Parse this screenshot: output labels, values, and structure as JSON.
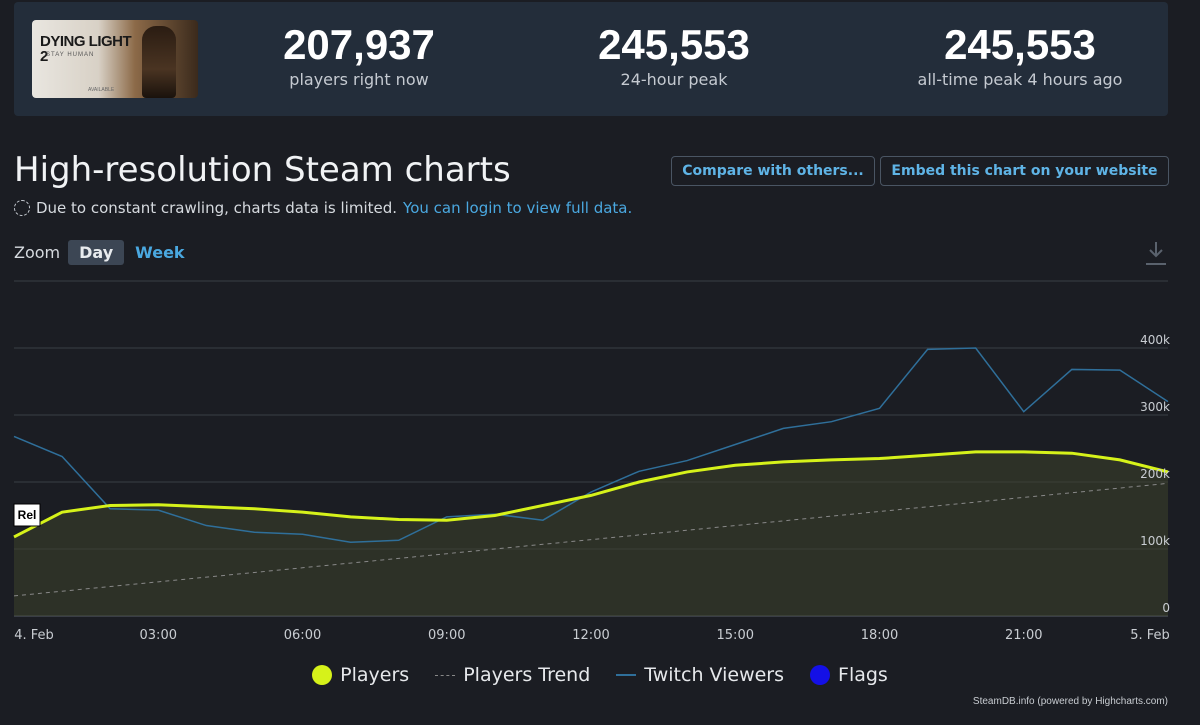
{
  "header": {
    "cover": {
      "title": "DYING LIGHT 2",
      "subtitle": "STAY HUMAN",
      "footer": "AVAILABLE"
    },
    "stats": [
      {
        "value": "207,937",
        "label": "players right now"
      },
      {
        "value": "245,553",
        "label": "24-hour peak"
      },
      {
        "value": "245,553",
        "label": "all-time peak 4 hours ago"
      }
    ]
  },
  "page": {
    "title": "High-resolution Steam charts",
    "compare_label": "Compare with others...",
    "embed_label": "Embed this chart on your website",
    "notice_text": "Due to constant crawling, charts data is limited.",
    "notice_link": "You can login to view full data."
  },
  "zoom": {
    "label": "Zoom",
    "day": "Day",
    "week": "Week"
  },
  "chart_data": {
    "type": "line",
    "x_ticks": [
      "4. Feb",
      "03:00",
      "06:00",
      "09:00",
      "12:00",
      "15:00",
      "18:00",
      "21:00",
      "5. Feb"
    ],
    "x_hours": [
      0,
      1,
      2,
      3,
      4,
      5,
      6,
      7,
      8,
      9,
      10,
      11,
      12,
      13,
      14,
      15,
      16,
      17,
      18,
      19,
      20,
      21,
      22,
      23,
      24
    ],
    "y_ticks": [
      "0",
      "100k",
      "200k",
      "300k",
      "400k"
    ],
    "ylim": [
      0,
      500000
    ],
    "legend_position": "bottom",
    "series": [
      {
        "name": "Players",
        "color": "#d6f21a",
        "values": [
          118000,
          155000,
          165000,
          166000,
          163000,
          160000,
          155000,
          148000,
          144000,
          143000,
          150000,
          165000,
          180000,
          200000,
          215000,
          225000,
          230000,
          233000,
          235000,
          240000,
          245000,
          245000,
          243000,
          233000,
          215000
        ]
      },
      {
        "name": "Twitch Viewers",
        "color": "#2f6f9a",
        "values": [
          268000,
          238000,
          160000,
          158000,
          135000,
          125000,
          122000,
          110000,
          113000,
          148000,
          152000,
          143000,
          185000,
          216000,
          232000,
          256000,
          280000,
          290000,
          310000,
          398000,
          400000,
          305000,
          368000,
          367000,
          320000
        ]
      },
      {
        "name": "Players Trend",
        "color": "#888888",
        "values": [
          30000,
          37000,
          44000,
          51000,
          58000,
          65000,
          72000,
          79000,
          86000,
          93000,
          100000,
          107000,
          114000,
          121000,
          128000,
          135000,
          142000,
          149000,
          156000,
          163000,
          170000,
          177000,
          184000,
          191000,
          198000
        ]
      }
    ],
    "flag_label": "Rel",
    "legend": [
      "Players",
      "Players Trend",
      "Twitch Viewers",
      "Flags"
    ]
  },
  "credits": "SteamDB.info (powered by Highcharts.com)"
}
